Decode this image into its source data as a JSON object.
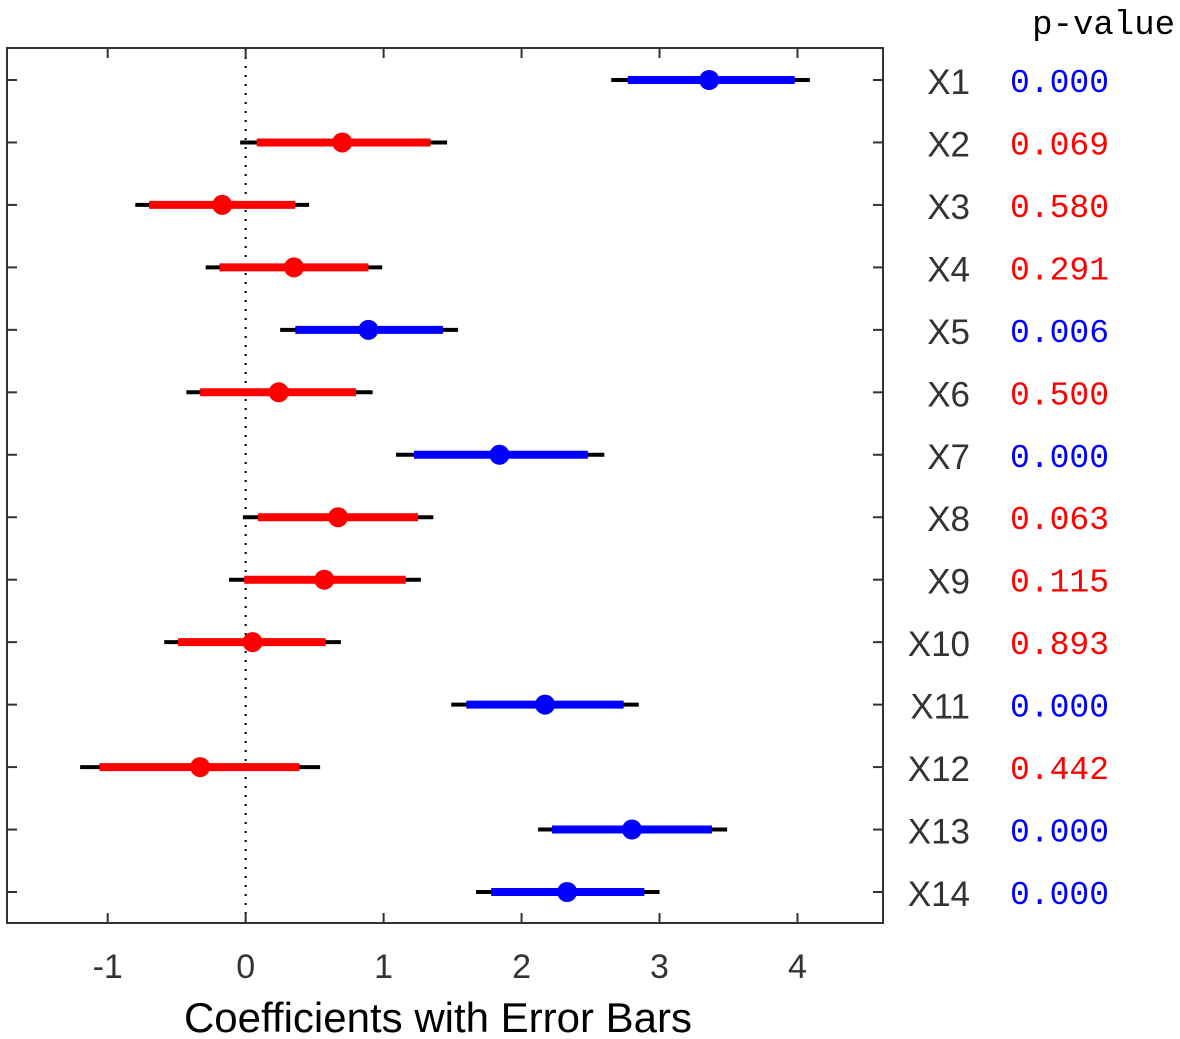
{
  "chart_data": {
    "type": "scatter",
    "subtype": "coefficient-plot-with-error-bars",
    "xlabel": "Coefficients with Error Bars",
    "xlim": [
      -1.73,
      4.62
    ],
    "xticks": [
      -1,
      0,
      1,
      2,
      3,
      4
    ],
    "reference_line": {
      "x": 0,
      "style": "dotted"
    },
    "grid": false,
    "pvalue_header": "p-value",
    "colors": {
      "significant": "#0000ff",
      "not_significant": "#ff0000",
      "outer_whisker": "#000000"
    },
    "variables": [
      {
        "name": "X1",
        "estimate": 3.36,
        "inner": [
          2.77,
          3.98
        ],
        "outer": [
          2.65,
          4.09
        ],
        "p_value": "0.000",
        "significant": true
      },
      {
        "name": "X2",
        "estimate": 0.7,
        "inner": [
          0.08,
          1.34
        ],
        "outer": [
          -0.04,
          1.46
        ],
        "p_value": "0.069",
        "significant": false
      },
      {
        "name": "X3",
        "estimate": -0.17,
        "inner": [
          -0.7,
          0.36
        ],
        "outer": [
          -0.8,
          0.46
        ],
        "p_value": "0.580",
        "significant": false
      },
      {
        "name": "X4",
        "estimate": 0.35,
        "inner": [
          -0.19,
          0.89
        ],
        "outer": [
          -0.29,
          0.99
        ],
        "p_value": "0.291",
        "significant": false
      },
      {
        "name": "X5",
        "estimate": 0.89,
        "inner": [
          0.36,
          1.43
        ],
        "outer": [
          0.25,
          1.54
        ],
        "p_value": "0.006",
        "significant": true
      },
      {
        "name": "X6",
        "estimate": 0.24,
        "inner": [
          -0.33,
          0.8
        ],
        "outer": [
          -0.43,
          0.92
        ],
        "p_value": "0.500",
        "significant": false
      },
      {
        "name": "X7",
        "estimate": 1.84,
        "inner": [
          1.22,
          2.48
        ],
        "outer": [
          1.09,
          2.6
        ],
        "p_value": "0.000",
        "significant": true
      },
      {
        "name": "X8",
        "estimate": 0.67,
        "inner": [
          0.09,
          1.25
        ],
        "outer": [
          -0.02,
          1.36
        ],
        "p_value": "0.063",
        "significant": false
      },
      {
        "name": "X9",
        "estimate": 0.57,
        "inner": [
          -0.01,
          1.16
        ],
        "outer": [
          -0.12,
          1.27
        ],
        "p_value": "0.115",
        "significant": false
      },
      {
        "name": "X10",
        "estimate": 0.05,
        "inner": [
          -0.49,
          0.58
        ],
        "outer": [
          -0.59,
          0.69
        ],
        "p_value": "0.893",
        "significant": false
      },
      {
        "name": "X11",
        "estimate": 2.17,
        "inner": [
          1.6,
          2.74
        ],
        "outer": [
          1.49,
          2.85
        ],
        "p_value": "0.000",
        "significant": true
      },
      {
        "name": "X12",
        "estimate": -0.33,
        "inner": [
          -1.06,
          0.39
        ],
        "outer": [
          -1.2,
          0.54
        ],
        "p_value": "0.442",
        "significant": false
      },
      {
        "name": "X13",
        "estimate": 2.8,
        "inner": [
          2.22,
          3.38
        ],
        "outer": [
          2.12,
          3.49
        ],
        "p_value": "0.000",
        "significant": true
      },
      {
        "name": "X14",
        "estimate": 2.33,
        "inner": [
          1.78,
          2.89
        ],
        "outer": [
          1.67,
          3.0
        ],
        "p_value": "0.000",
        "significant": true
      }
    ]
  }
}
